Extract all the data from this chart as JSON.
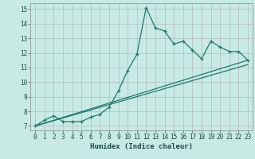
{
  "xlabel": "Humidex (Indice chaleur)",
  "bg_color": "#c8eae4",
  "line_color": "#1a7a6e",
  "grid_color": "#b0b0b0",
  "xlim": [
    -0.5,
    23.5
  ],
  "ylim": [
    6.7,
    15.4
  ],
  "xticks": [
    0,
    1,
    2,
    3,
    4,
    5,
    6,
    7,
    8,
    9,
    10,
    11,
    12,
    13,
    14,
    15,
    16,
    17,
    18,
    19,
    20,
    21,
    22,
    23
  ],
  "yticks": [
    7,
    8,
    9,
    10,
    11,
    12,
    13,
    14,
    15
  ],
  "line1_x": [
    0,
    1,
    2,
    3,
    4,
    5,
    6,
    7,
    8,
    9,
    10,
    11,
    12,
    13,
    14,
    15,
    16,
    17,
    18,
    19,
    20,
    21,
    22,
    23
  ],
  "line1_y": [
    7.0,
    7.4,
    7.7,
    7.3,
    7.3,
    7.3,
    7.6,
    7.8,
    8.3,
    9.4,
    10.8,
    11.9,
    15.1,
    13.7,
    13.5,
    12.6,
    12.8,
    12.2,
    11.6,
    12.8,
    12.4,
    12.1,
    12.1,
    11.5
  ],
  "line2_x": [
    0,
    23
  ],
  "line2_y": [
    7.0,
    11.5
  ],
  "line3_x": [
    0,
    23
  ],
  "line3_y": [
    7.0,
    11.2
  ]
}
